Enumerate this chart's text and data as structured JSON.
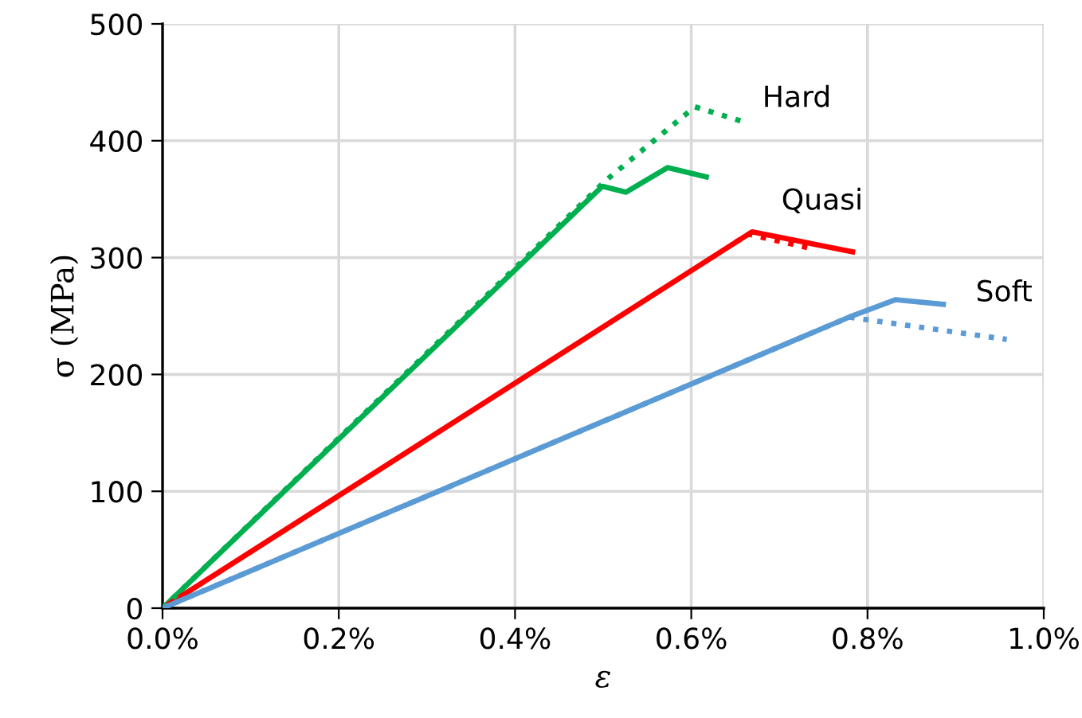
{
  "chart_data": {
    "type": "line",
    "xlabel": "ε",
    "ylabel": "σ (MPa)",
    "xlim": [
      0,
      1.0
    ],
    "ylim": [
      0,
      500
    ],
    "xticks": [
      {
        "value": 0,
        "label": "0.0%"
      },
      {
        "value": 0.2,
        "label": "0.2%"
      },
      {
        "value": 0.4,
        "label": "0.4%"
      },
      {
        "value": 0.6,
        "label": "0.6%"
      },
      {
        "value": 0.8,
        "label": "0.8%"
      },
      {
        "value": 1.0,
        "label": "1.0%"
      }
    ],
    "yticks": [
      0,
      100,
      200,
      300,
      400,
      500
    ],
    "grid": true,
    "legend": false,
    "series": [
      {
        "name": "Hard",
        "color": "#00b050",
        "line_style": "dotted",
        "x": [
          0,
          0.503,
          0.604,
          0.656
        ],
        "values": [
          0,
          366,
          429,
          417
        ]
      },
      {
        "color": "#00b050",
        "line_style": "solid",
        "x": [
          0,
          0.499,
          0.526,
          0.573,
          0.617
        ],
        "values": [
          0,
          361,
          356,
          377,
          369
        ]
      },
      {
        "color": "#ff0000",
        "line_style": "dotted",
        "x": [
          0.65,
          0.665,
          0.741
        ],
        "values": [
          313,
          320,
          307
        ]
      },
      {
        "name": "Quasi",
        "color": "#ff0000",
        "line_style": "solid",
        "x": [
          0,
          0.669,
          0.783
        ],
        "values": [
          0,
          322,
          305
        ]
      },
      {
        "color": "#5b9bd5",
        "line_style": "dotted",
        "x": [
          0,
          0.779,
          0.958
        ],
        "values": [
          0,
          249,
          230
        ]
      },
      {
        "name": "Soft",
        "color": "#5b9bd5",
        "line_style": "solid",
        "x": [
          0,
          0.779,
          0.832,
          0.886
        ],
        "values": [
          0,
          249,
          264,
          260
        ]
      }
    ]
  }
}
